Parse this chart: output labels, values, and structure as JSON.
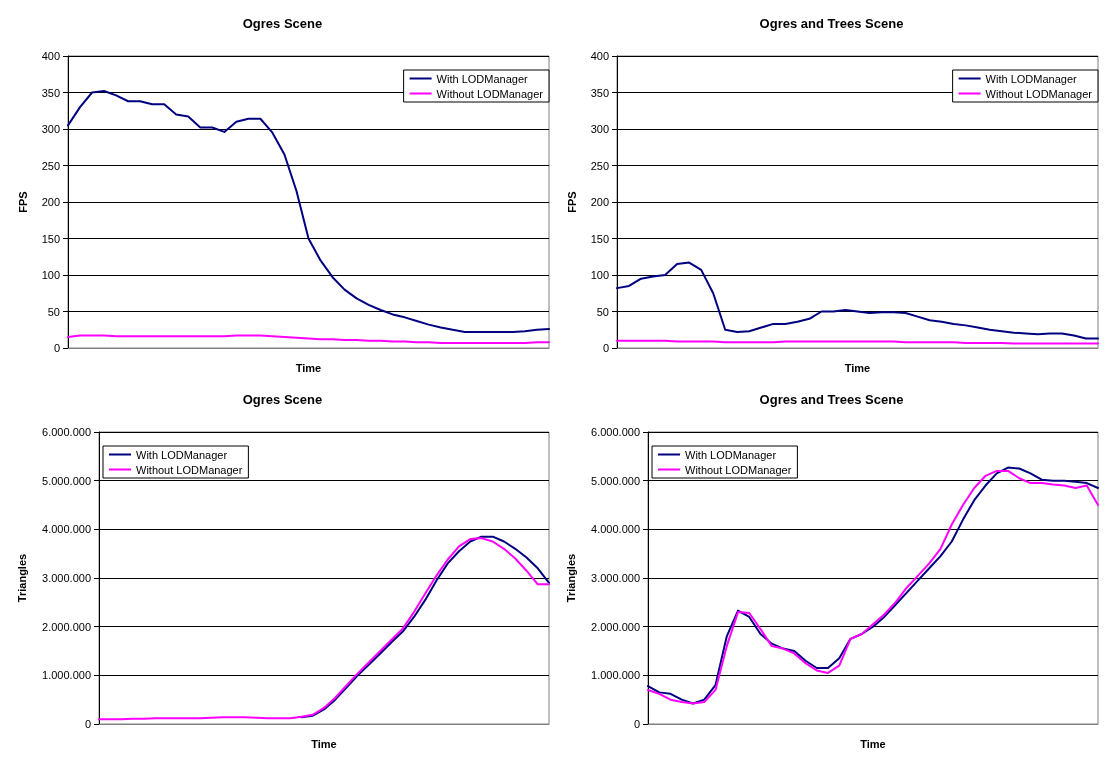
{
  "chart_data": [
    {
      "type": "line",
      "title": "Ogres Scene",
      "xlabel": "Time",
      "ylabel": "FPS",
      "categories": [
        null,
        null,
        null,
        null,
        null,
        null,
        null,
        null,
        null,
        null,
        null,
        null,
        null,
        null,
        null,
        null,
        null,
        null,
        null,
        null,
        null,
        null,
        null,
        null,
        null,
        null,
        null,
        null,
        null,
        null,
        null,
        null,
        null,
        null,
        null,
        null,
        null,
        null,
        null,
        null,
        null
      ],
      "ylim": [
        0,
        400
      ],
      "yticks": [
        0,
        50,
        100,
        150,
        200,
        250,
        300,
        350,
        400
      ],
      "grid": "y",
      "legend": "top right",
      "marker": "none",
      "line_style": "solid",
      "series": [
        {
          "name": "With LODManager",
          "color": "#000080",
          "values": [
            305,
            330,
            350,
            352,
            346,
            338,
            338,
            334,
            334,
            320,
            317,
            302,
            302,
            296,
            310,
            314,
            314,
            295,
            265,
            215,
            150,
            120,
            97,
            80,
            68,
            59,
            52,
            46,
            42,
            37,
            32,
            28,
            25,
            22,
            22,
            22,
            22,
            22,
            23,
            25,
            26
          ]
        },
        {
          "name": "Without LODManager",
          "color": "#ff00ff",
          "values": [
            15,
            17,
            17,
            17,
            16,
            16,
            16,
            16,
            16,
            16,
            16,
            16,
            16,
            16,
            17,
            17,
            17,
            16,
            15,
            14,
            13,
            12,
            12,
            11,
            11,
            10,
            10,
            9,
            9,
            8,
            8,
            7,
            7,
            7,
            7,
            7,
            7,
            7,
            7,
            8,
            8
          ]
        }
      ]
    },
    {
      "type": "line",
      "title": "Ogres and Trees Scene",
      "xlabel": "Time",
      "ylabel": "FPS",
      "categories": [
        null,
        null,
        null,
        null,
        null,
        null,
        null,
        null,
        null,
        null,
        null,
        null,
        null,
        null,
        null,
        null,
        null,
        null,
        null,
        null,
        null,
        null,
        null,
        null,
        null,
        null,
        null,
        null,
        null,
        null,
        null,
        null,
        null,
        null,
        null,
        null,
        null,
        null,
        null,
        null,
        null
      ],
      "ylim": [
        0,
        400
      ],
      "yticks": [
        0,
        50,
        100,
        150,
        200,
        250,
        300,
        350,
        400
      ],
      "grid": "y",
      "legend": "top right",
      "marker": "none",
      "line_style": "solid",
      "series": [
        {
          "name": "With LODManager",
          "color": "#000080",
          "values": [
            82,
            85,
            95,
            98,
            100,
            115,
            117,
            107,
            75,
            25,
            22,
            23,
            28,
            33,
            33,
            36,
            40,
            50,
            50,
            52,
            50,
            48,
            49,
            49,
            48,
            43,
            38,
            36,
            33,
            31,
            28,
            25,
            23,
            21,
            20,
            19,
            20,
            20,
            17,
            13,
            13
          ]
        },
        {
          "name": "Without LODManager",
          "color": "#ff00ff",
          "values": [
            10,
            10,
            10,
            10,
            10,
            9,
            9,
            9,
            9,
            8,
            8,
            8,
            8,
            8,
            9,
            9,
            9,
            9,
            9,
            9,
            9,
            9,
            9,
            9,
            8,
            8,
            8,
            8,
            8,
            7,
            7,
            7,
            7,
            6,
            6,
            6,
            6,
            6,
            6,
            6,
            6
          ]
        }
      ]
    },
    {
      "type": "line",
      "title": "Ogres Scene",
      "xlabel": "Time",
      "ylabel": "Triangles",
      "categories": [
        null,
        null,
        null,
        null,
        null,
        null,
        null,
        null,
        null,
        null,
        null,
        null,
        null,
        null,
        null,
        null,
        null,
        null,
        null,
        null,
        null,
        null,
        null,
        null,
        null,
        null,
        null,
        null,
        null,
        null,
        null,
        null,
        null,
        null,
        null,
        null,
        null,
        null,
        null,
        null,
        null
      ],
      "ylim": [
        0,
        6000000
      ],
      "yticks": [
        {
          "value": 0,
          "label": "0"
        },
        {
          "value": 1000000,
          "label": "1.000.000"
        },
        {
          "value": 2000000,
          "label": "2.000.000"
        },
        {
          "value": 3000000,
          "label": "3.000.000"
        },
        {
          "value": 4000000,
          "label": "4.000.000"
        },
        {
          "value": 5000000,
          "label": "5.000.000"
        },
        {
          "value": 6000000,
          "label": "6.000.000"
        }
      ],
      "grid": "y",
      "legend": "top left",
      "marker": "none",
      "line_style": "solid",
      "series": [
        {
          "name": "With LODManager",
          "color": "#000080",
          "values": [
            null,
            null,
            null,
            null,
            null,
            null,
            null,
            null,
            null,
            null,
            null,
            null,
            null,
            null,
            null,
            null,
            null,
            null,
            140000,
            170000,
            300000,
            500000,
            750000,
            1000000,
            1220000,
            1450000,
            1680000,
            1900000,
            2200000,
            2550000,
            2950000,
            3300000,
            3550000,
            3750000,
            3850000,
            3850000,
            3750000,
            3600000,
            3420000,
            3200000,
            2900000
          ]
        },
        {
          "name": "Without LODManager",
          "color": "#ff00ff",
          "values": [
            100000,
            100000,
            100000,
            110000,
            110000,
            120000,
            120000,
            120000,
            120000,
            120000,
            130000,
            140000,
            140000,
            140000,
            130000,
            120000,
            120000,
            120000,
            150000,
            190000,
            330000,
            540000,
            790000,
            1040000,
            1270000,
            1500000,
            1730000,
            1960000,
            2300000,
            2680000,
            3050000,
            3380000,
            3650000,
            3800000,
            3820000,
            3750000,
            3600000,
            3400000,
            3150000,
            2870000,
            2870000
          ]
        }
      ]
    },
    {
      "type": "line",
      "title": "Ogres and Trees Scene",
      "xlabel": "Time",
      "ylabel": "Triangles",
      "categories": [
        null,
        null,
        null,
        null,
        null,
        null,
        null,
        null,
        null,
        null,
        null,
        null,
        null,
        null,
        null,
        null,
        null,
        null,
        null,
        null,
        null,
        null,
        null,
        null,
        null,
        null,
        null,
        null,
        null,
        null,
        null,
        null,
        null,
        null,
        null,
        null,
        null,
        null,
        null,
        null,
        null
      ],
      "ylim": [
        0,
        6000000
      ],
      "yticks": [
        {
          "value": 0,
          "label": "0"
        },
        {
          "value": 1000000,
          "label": "1.000.000"
        },
        {
          "value": 2000000,
          "label": "2.000.000"
        },
        {
          "value": 3000000,
          "label": "3.000.000"
        },
        {
          "value": 4000000,
          "label": "4.000.000"
        },
        {
          "value": 5000000,
          "label": "5.000.000"
        },
        {
          "value": 6000000,
          "label": "6.000.000"
        }
      ],
      "grid": "y",
      "legend": "top left",
      "marker": "none",
      "line_style": "solid",
      "series": [
        {
          "name": "With LODManager",
          "color": "#000080",
          "values": [
            780000,
            650000,
            620000,
            500000,
            420000,
            500000,
            800000,
            1800000,
            2330000,
            2200000,
            1850000,
            1650000,
            1550000,
            1500000,
            1300000,
            1150000,
            1150000,
            1350000,
            1750000,
            1850000,
            2000000,
            2200000,
            2450000,
            2700000,
            2950000,
            3200000,
            3450000,
            3750000,
            4200000,
            4600000,
            4900000,
            5150000,
            5270000,
            5250000,
            5150000,
            5020000,
            5000000,
            5000000,
            4980000,
            4950000,
            4850000
          ]
        },
        {
          "name": "Without LODManager",
          "color": "#ff00ff",
          "values": [
            700000,
            620000,
            500000,
            450000,
            420000,
            450000,
            700000,
            1600000,
            2300000,
            2280000,
            1950000,
            1600000,
            1550000,
            1450000,
            1250000,
            1100000,
            1050000,
            1200000,
            1750000,
            1850000,
            2050000,
            2250000,
            2500000,
            2800000,
            3050000,
            3300000,
            3600000,
            4100000,
            4500000,
            4850000,
            5100000,
            5200000,
            5200000,
            5050000,
            4950000,
            4950000,
            4920000,
            4900000,
            4850000,
            4900000,
            4500000
          ]
        }
      ]
    }
  ]
}
